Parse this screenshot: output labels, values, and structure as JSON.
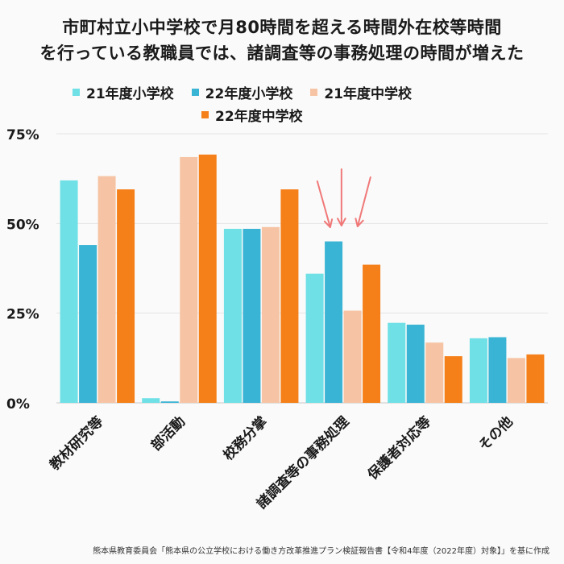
{
  "title_line1": "市町村立小中学校で月80時間を超える時間外在校等時間",
  "title_line2": "を行っている教職員では、諸調査等の事務処理の時間が増えた",
  "source": "熊本県教育委員会「熊本県の公立学校における働き方改革推進プラン検証報告書【令和4年度（2022年度）対象】」を基に作成",
  "chart_data": {
    "type": "bar",
    "categories": [
      "教材研究等",
      "部活動",
      "校務分掌",
      "諸調査等の事務処理",
      "保護者対応等",
      "その他"
    ],
    "series": [
      {
        "name": "21年度小学校",
        "color": "#6ee0e6",
        "values": [
          62,
          1.3,
          48.5,
          36,
          22.3,
          18
        ]
      },
      {
        "name": "22年度小学校",
        "color": "#3ab4d4",
        "values": [
          44,
          0.4,
          48.5,
          45,
          21.8,
          18.3
        ]
      },
      {
        "name": "21年度中学校",
        "color": "#f6c4a4",
        "values": [
          63.2,
          68.5,
          49,
          25.7,
          16.8,
          12.5
        ]
      },
      {
        "name": "22年度中学校",
        "color": "#f57f18",
        "values": [
          59.5,
          69.2,
          59.5,
          38.5,
          13,
          13.5
        ]
      }
    ],
    "yticks": [
      "0%",
      "25%",
      "50%",
      "75%"
    ],
    "ylim": [
      0,
      75
    ],
    "highlight_category": "諸調査等の事務処理",
    "arrow_color": "#f07878"
  }
}
